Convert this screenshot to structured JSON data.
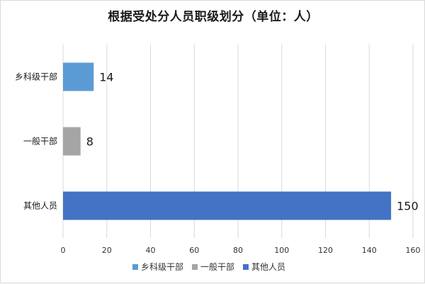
{
  "chart_data": {
    "type": "bar",
    "orientation": "horizontal",
    "title": "根据受处分人员职级划分（单位：人）",
    "categories": [
      "乡科级干部",
      "一般干部",
      "其他人员"
    ],
    "values": [
      14,
      8,
      150
    ],
    "colors": [
      "#5b9bd5",
      "#a5a5a5",
      "#4472c4"
    ],
    "data_labels": [
      "14",
      "8",
      "150"
    ],
    "xlim": [
      0,
      160
    ],
    "x_ticks": [
      0,
      20,
      40,
      60,
      80,
      100,
      120,
      140,
      160
    ],
    "x_tick_labels": [
      "0",
      "20",
      "40",
      "60",
      "80",
      "100",
      "120",
      "140",
      "160"
    ],
    "grid": true,
    "legend": {
      "position": "bottom",
      "entries": [
        "乡科级干部",
        "一般干部",
        "其他人员"
      ]
    }
  }
}
